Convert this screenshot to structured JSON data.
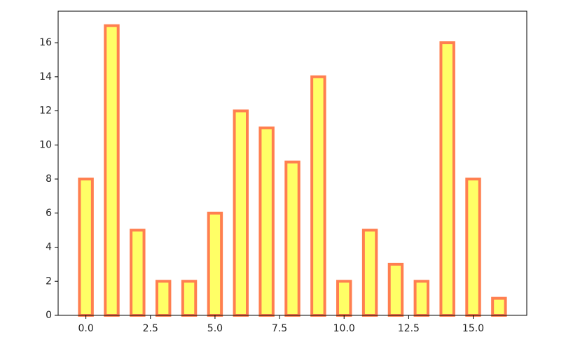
{
  "chart_data": {
    "type": "bar",
    "x": [
      0,
      1,
      2,
      3,
      4,
      5,
      6,
      7,
      8,
      9,
      10,
      11,
      12,
      13,
      14,
      15,
      16
    ],
    "values": [
      8,
      17,
      5,
      2,
      2,
      6,
      12,
      11,
      9,
      14,
      2,
      5,
      3,
      2,
      16,
      8,
      1
    ],
    "color": "#ffff66",
    "edgecolor": "#ff7f50",
    "xlim": [
      -1.075,
      17.075
    ],
    "xticks": [
      {
        "value": 0,
        "label": "0.0"
      },
      {
        "value": 2.5,
        "label": "2.5"
      },
      {
        "value": 5,
        "label": "5.0"
      },
      {
        "value": 7.5,
        "label": "7.5"
      },
      {
        "value": 10,
        "label": "10.0"
      },
      {
        "value": 12.5,
        "label": "12.5"
      },
      {
        "value": 15,
        "label": "15.0"
      }
    ],
    "ylim": [
      0,
      17.85
    ],
    "yticks": [
      0,
      2,
      4,
      6,
      8,
      10,
      12,
      14,
      16
    ],
    "grid": false
  }
}
